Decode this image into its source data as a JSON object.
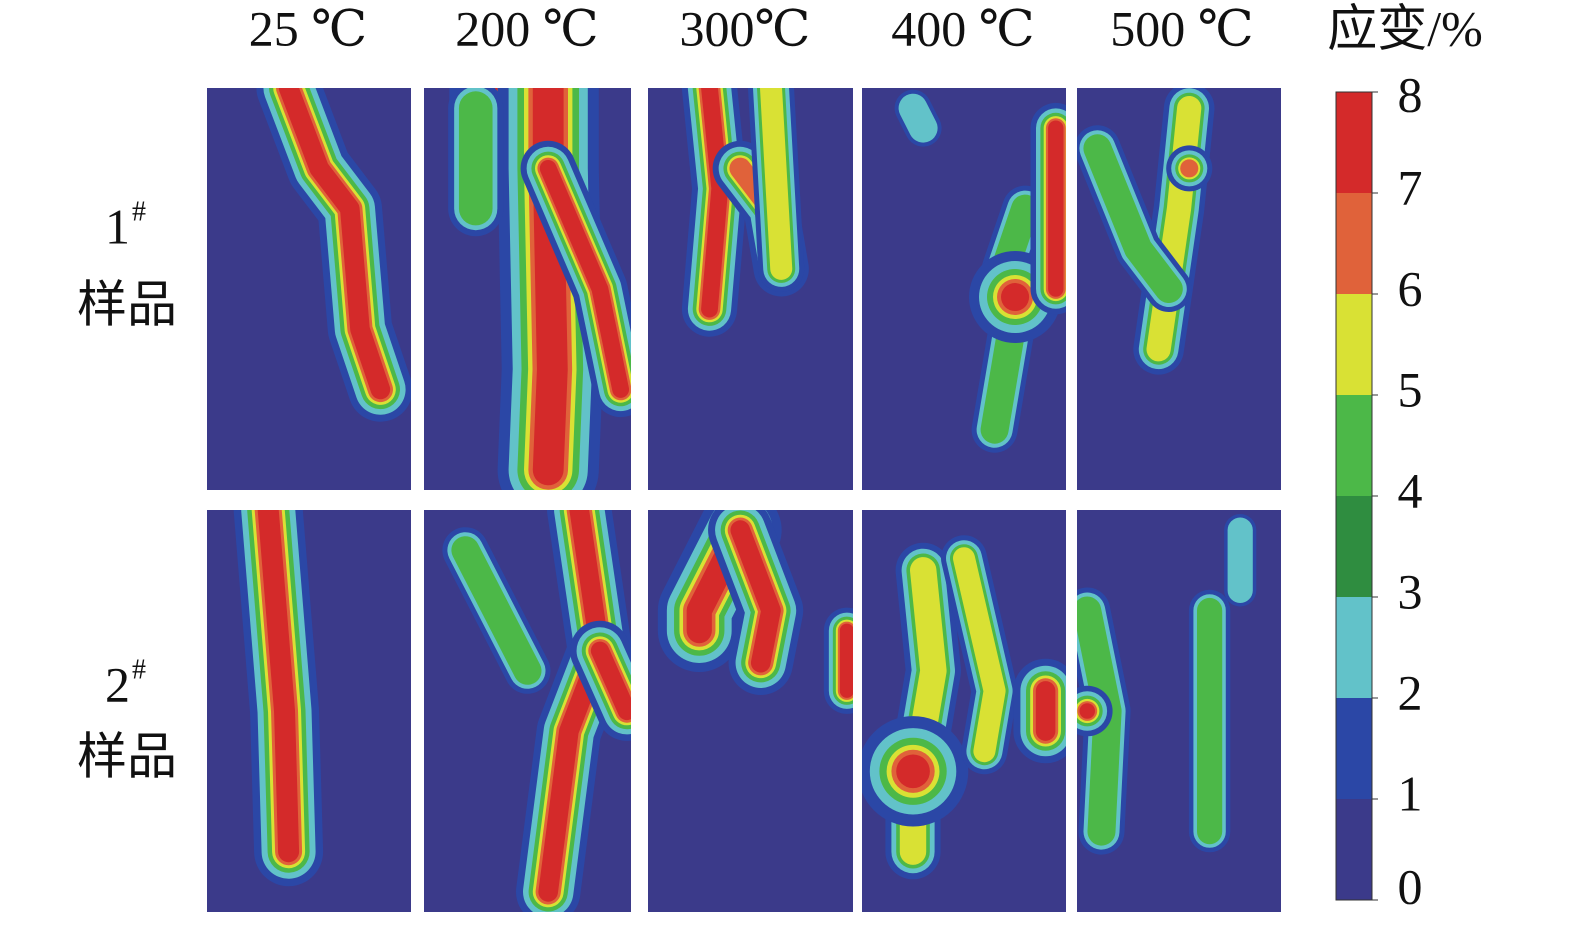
{
  "column_headers": [
    "25 ℃",
    "200 ℃",
    "300℃",
    "400 ℃",
    "500 ℃"
  ],
  "row_labels": [
    {
      "number": "1",
      "sup": "#",
      "text": "样品"
    },
    {
      "number": "2",
      "sup": "#",
      "text": "样品"
    }
  ],
  "colorbar": {
    "title": "应变/%",
    "lim": [
      0,
      8
    ],
    "ticks": [
      0,
      1,
      2,
      3,
      4,
      5,
      6,
      7,
      8
    ],
    "colors": [
      "#3b3a8a",
      "#2b47a6",
      "#62c2c9",
      "#2f8d40",
      "#4cb848",
      "#d9e134",
      "#e0623a",
      "#d42a2a"
    ]
  }
}
